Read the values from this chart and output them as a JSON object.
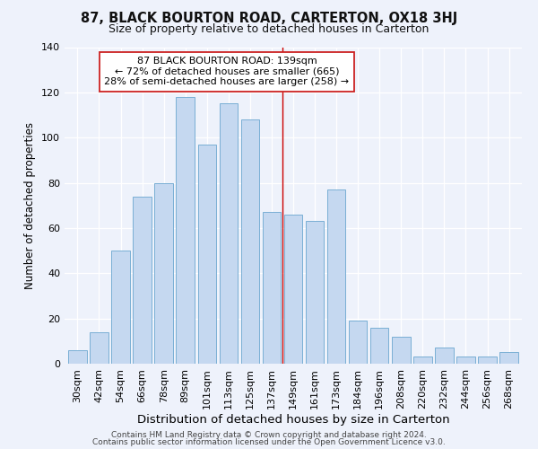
{
  "title": "87, BLACK BOURTON ROAD, CARTERTON, OX18 3HJ",
  "subtitle": "Size of property relative to detached houses in Carterton",
  "xlabel": "Distribution of detached houses by size in Carterton",
  "ylabel": "Number of detached properties",
  "categories": [
    "30sqm",
    "42sqm",
    "54sqm",
    "66sqm",
    "78sqm",
    "89sqm",
    "101sqm",
    "113sqm",
    "125sqm",
    "137sqm",
    "149sqm",
    "161sqm",
    "173sqm",
    "184sqm",
    "196sqm",
    "208sqm",
    "220sqm",
    "232sqm",
    "244sqm",
    "256sqm",
    "268sqm"
  ],
  "values": [
    6,
    14,
    50,
    74,
    80,
    118,
    97,
    115,
    108,
    67,
    66,
    63,
    77,
    19,
    16,
    12,
    3,
    7,
    3,
    3,
    5
  ],
  "bar_color": "#c5d8f0",
  "bar_edge_color": "#7aafd4",
  "background_color": "#eef2fb",
  "grid_color": "#ffffff",
  "vline_x": 9.5,
  "vline_color": "#cc0000",
  "annotation_text": "87 BLACK BOURTON ROAD: 139sqm\n← 72% of detached houses are smaller (665)\n28% of semi-detached houses are larger (258) →",
  "annotation_box_facecolor": "#ffffff",
  "annotation_box_edge": "#cc2222",
  "footer1": "Contains HM Land Registry data © Crown copyright and database right 2024.",
  "footer2": "Contains public sector information licensed under the Open Government Licence v3.0.",
  "ylim": [
    0,
    140
  ],
  "title_fontsize": 10.5,
  "subtitle_fontsize": 9,
  "xlabel_fontsize": 9.5,
  "ylabel_fontsize": 8.5,
  "tick_fontsize": 8,
  "annotation_fontsize": 8,
  "footer_fontsize": 6.5
}
